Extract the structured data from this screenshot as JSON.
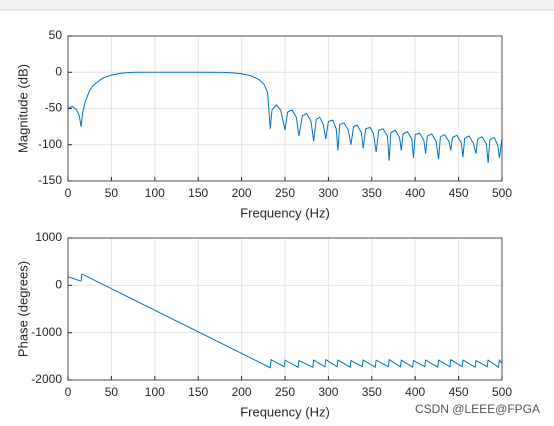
{
  "chart_data": [
    {
      "type": "line",
      "xlabel": "Frequency (Hz)",
      "ylabel": "Magnitude (dB)",
      "x": [
        0,
        5,
        10,
        13,
        15,
        17,
        20,
        25,
        30,
        40,
        50,
        60,
        70,
        80,
        100,
        150,
        180,
        190,
        200,
        210,
        220,
        226,
        230,
        233,
        235,
        240,
        245,
        250,
        253,
        258,
        263,
        266,
        270,
        275,
        280,
        283,
        286,
        290,
        294,
        297,
        300,
        305,
        309,
        311,
        313,
        318,
        323,
        326,
        329,
        333,
        338,
        340,
        343,
        348,
        352,
        355,
        358,
        363,
        368,
        370,
        372,
        377,
        382,
        384,
        386,
        391,
        396,
        398,
        400,
        405,
        410,
        412,
        414,
        419,
        424,
        427,
        429,
        434,
        439,
        441,
        443,
        448,
        453,
        455,
        457,
        462,
        467,
        470,
        472,
        477,
        482,
        484,
        486,
        491,
        495,
        497,
        500
      ],
      "series": [
        {
          "color": "#0072bd",
          "values": [
            -50,
            -47,
            -52,
            -60,
            -75,
            -55,
            -40,
            -25,
            -17,
            -8,
            -4,
            -1.5,
            -0.4,
            0,
            0,
            0,
            -0.2,
            -0.8,
            -2,
            -4.5,
            -10,
            -17,
            -28,
            -78,
            -52,
            -45,
            -52,
            -80,
            -55,
            -52,
            -62,
            -88,
            -60,
            -57,
            -68,
            -95,
            -65,
            -62,
            -72,
            -92,
            -68,
            -66,
            -78,
            -108,
            -72,
            -70,
            -80,
            -100,
            -75,
            -73,
            -83,
            -105,
            -78,
            -76,
            -85,
            -110,
            -80,
            -78,
            -88,
            -122,
            -83,
            -80,
            -90,
            -108,
            -85,
            -82,
            -92,
            -118,
            -86,
            -84,
            -94,
            -112,
            -88,
            -85,
            -95,
            -120,
            -89,
            -86,
            -96,
            -108,
            -90,
            -87,
            -97,
            -117,
            -91,
            -88,
            -98,
            -112,
            -92,
            -89,
            -99,
            -125,
            -93,
            -90,
            -100,
            -118,
            -92
          ]
        }
      ],
      "xlim": [
        0,
        500
      ],
      "xticks": [
        0,
        50,
        100,
        150,
        200,
        250,
        300,
        350,
        400,
        450,
        500
      ],
      "ylim": [
        -150,
        50
      ],
      "yticks": [
        -150,
        -100,
        -50,
        0,
        50
      ],
      "grid": true
    },
    {
      "type": "line",
      "xlabel": "Frequency (Hz)",
      "ylabel": "Phase (degrees)",
      "x": [
        0,
        15,
        16,
        233,
        234,
        249,
        250,
        265,
        266,
        282,
        283,
        296,
        297,
        310,
        311,
        325,
        326,
        339,
        340,
        354,
        355,
        369,
        370,
        383,
        384,
        397,
        398,
        411,
        412,
        426,
        427,
        440,
        441,
        454,
        455,
        469,
        470,
        483,
        484,
        496,
        497,
        500
      ],
      "series": [
        {
          "color": "#0072bd",
          "values": [
            180,
            90,
            240,
            -1740,
            -1570,
            -1720,
            -1580,
            -1730,
            -1590,
            -1730,
            -1580,
            -1720,
            -1570,
            -1720,
            -1580,
            -1730,
            -1590,
            -1720,
            -1580,
            -1730,
            -1580,
            -1720,
            -1570,
            -1720,
            -1580,
            -1730,
            -1590,
            -1720,
            -1580,
            -1730,
            -1580,
            -1720,
            -1570,
            -1720,
            -1580,
            -1730,
            -1590,
            -1720,
            -1580,
            -1730,
            -1580,
            -1650
          ]
        }
      ],
      "xlim": [
        0,
        500
      ],
      "xticks": [
        0,
        50,
        100,
        150,
        200,
        250,
        300,
        350,
        400,
        450,
        500
      ],
      "ylim": [
        -2000,
        1000
      ],
      "yticks": [
        -2000,
        -1000,
        0,
        1000
      ],
      "grid": true
    }
  ],
  "watermark": "CSDN @LEEE@FPGA"
}
